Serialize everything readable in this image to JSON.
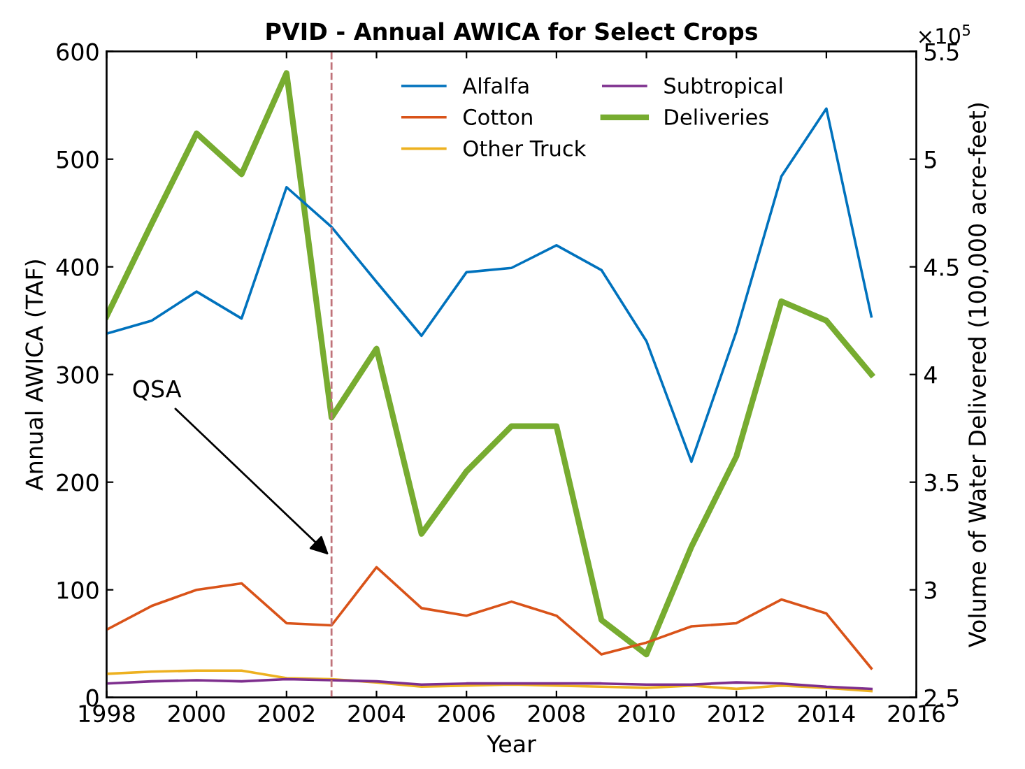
{
  "chart_data": {
    "type": "line",
    "title": "PVID - Annual AWICA for Select Crops",
    "xlabel": "Year",
    "ylabel": "Annual AWICA (TAF)",
    "y2label": "Volume of Water Delivered (100,000 acre-feet)",
    "x": [
      1998,
      1999,
      2000,
      2001,
      2002,
      2003,
      2004,
      2005,
      2006,
      2007,
      2008,
      2009,
      2010,
      2011,
      2012,
      2013,
      2014,
      2015
    ],
    "series": [
      {
        "name": "Alfalfa",
        "color": "#0072bd",
        "values": [
          338,
          350,
          377,
          352,
          474,
          437,
          386,
          336,
          395,
          399,
          420,
          397,
          331,
          219,
          340,
          484,
          547,
          354
        ]
      },
      {
        "name": "Cotton",
        "color": "#d95319",
        "values": [
          63,
          85,
          100,
          106,
          69,
          67,
          121,
          83,
          76,
          89,
          76,
          40,
          51,
          66,
          69,
          91,
          78,
          27
        ]
      },
      {
        "name": "Other Truck",
        "color": "#edb120",
        "values": [
          22,
          24,
          25,
          25,
          18,
          17,
          14,
          10,
          11,
          12,
          11,
          10,
          9,
          11,
          8,
          11,
          9,
          6
        ]
      },
      {
        "name": "Subtropical",
        "color": "#7e2f8e",
        "values": [
          13,
          15,
          16,
          15,
          17,
          16,
          15,
          12,
          13,
          13,
          13,
          13,
          12,
          12,
          14,
          13,
          10,
          8
        ]
      },
      {
        "name": "Deliveries",
        "color": "#77ac30",
        "axis": "y2",
        "values": [
          4.27,
          4.7,
          5.12,
          4.93,
          5.4,
          3.8,
          4.12,
          3.26,
          3.55,
          3.76,
          3.76,
          2.86,
          2.7,
          3.2,
          3.62,
          4.34,
          4.25,
          4.0
        ]
      }
    ],
    "xlim": [
      1998,
      2016
    ],
    "xticks": [
      1998,
      2000,
      2002,
      2004,
      2006,
      2008,
      2010,
      2012,
      2014,
      2016
    ],
    "ylim": [
      0,
      600
    ],
    "yticks": [
      0,
      100,
      200,
      300,
      400,
      500,
      600
    ],
    "y2lim": [
      2.5,
      5.5
    ],
    "y2ticks": [
      2.5,
      3,
      3.5,
      4,
      4.5,
      5,
      5.5
    ],
    "ref_lines": [
      {
        "axis": "x",
        "value": 2003,
        "color": "#c0737a",
        "line_style": "dashed"
      }
    ],
    "annotations": [
      {
        "text": "QSA",
        "x": 2003,
        "y": 130
      },
      "×10$^{5}$"
    ],
    "legend": "top right",
    "grid": false,
    "line_style": "solid",
    "marker": "none"
  }
}
